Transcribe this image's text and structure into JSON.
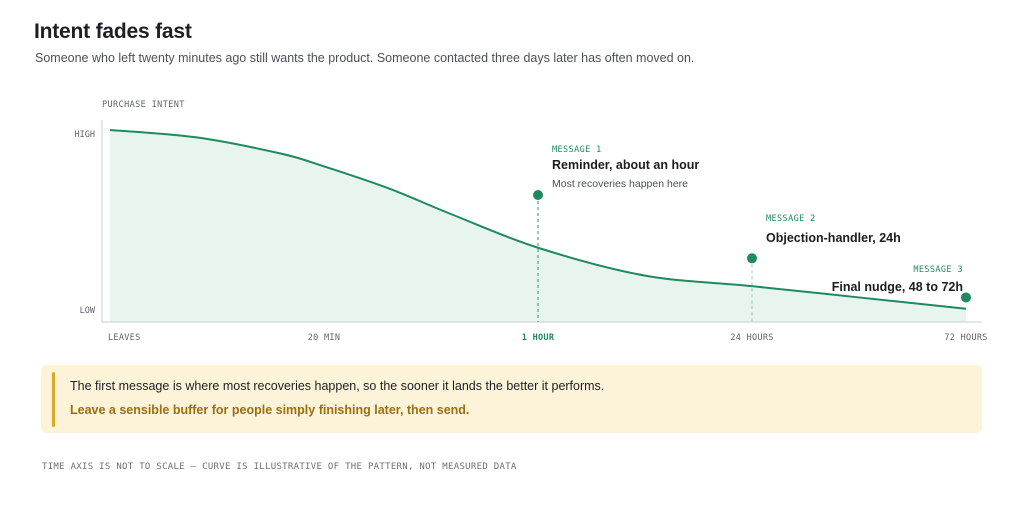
{
  "header": {
    "title": "Intent fades fast",
    "subtitle": "Someone who left twenty minutes ago still wants the product.  Someone contacted three days later has often moved on."
  },
  "chart_data": {
    "type": "area",
    "title": "Intent fades fast",
    "ylabel": "PURCHASE INTENT",
    "y_ticks": [
      "HIGH",
      "LOW"
    ],
    "x_ticks": [
      "LEAVES",
      "20 MIN",
      "1 HOUR",
      "24 HOURS",
      "72 HOURS"
    ],
    "highlighted_x_tick": "1 HOUR",
    "grid": false,
    "colors": {
      "line": "#1f8a5e",
      "fill": "#e8f5ee",
      "accent_label": "#1f8a5e",
      "axis": "#c9cdd2"
    },
    "curve": [
      {
        "x": 0,
        "y": 1.0
      },
      {
        "x": 0.4,
        "y": 0.96
      },
      {
        "x": 0.8,
        "y": 0.87
      },
      {
        "x": 1.0,
        "y": 0.8
      },
      {
        "x": 1.3,
        "y": 0.68
      },
      {
        "x": 1.6,
        "y": 0.535
      },
      {
        "x": 2.0,
        "y": 0.353
      },
      {
        "x": 2.5,
        "y": 0.2
      },
      {
        "x": 3.0,
        "y": 0.142
      },
      {
        "x": 3.5,
        "y": 0.08
      },
      {
        "x": 4.0,
        "y": 0.018
      }
    ],
    "messages": [
      {
        "tag": "MESSAGE 1",
        "title": "Reminder, about an hour",
        "note": "Most recoveries happen here",
        "x": 2.0,
        "y": 0.643,
        "align": "start"
      },
      {
        "tag": "MESSAGE 2",
        "title": "Objection-handler, 24h",
        "note": "",
        "x": 3.0,
        "y": 0.295,
        "align": "start"
      },
      {
        "tag": "MESSAGE 3",
        "title": "Final nudge, 48 to 72h",
        "note": "",
        "x": 4.0,
        "y": 0.08,
        "align": "end"
      }
    ]
  },
  "callout": {
    "text": "The first message is where most recoveries happen, so the sooner it lands the better it performs.",
    "emphasis": "Leave a sensible buffer for people simply finishing later, then send."
  },
  "footnote": "TIME AXIS IS NOT TO SCALE – CURVE IS ILLUSTRATIVE OF THE PATTERN, NOT MEASURED DATA"
}
